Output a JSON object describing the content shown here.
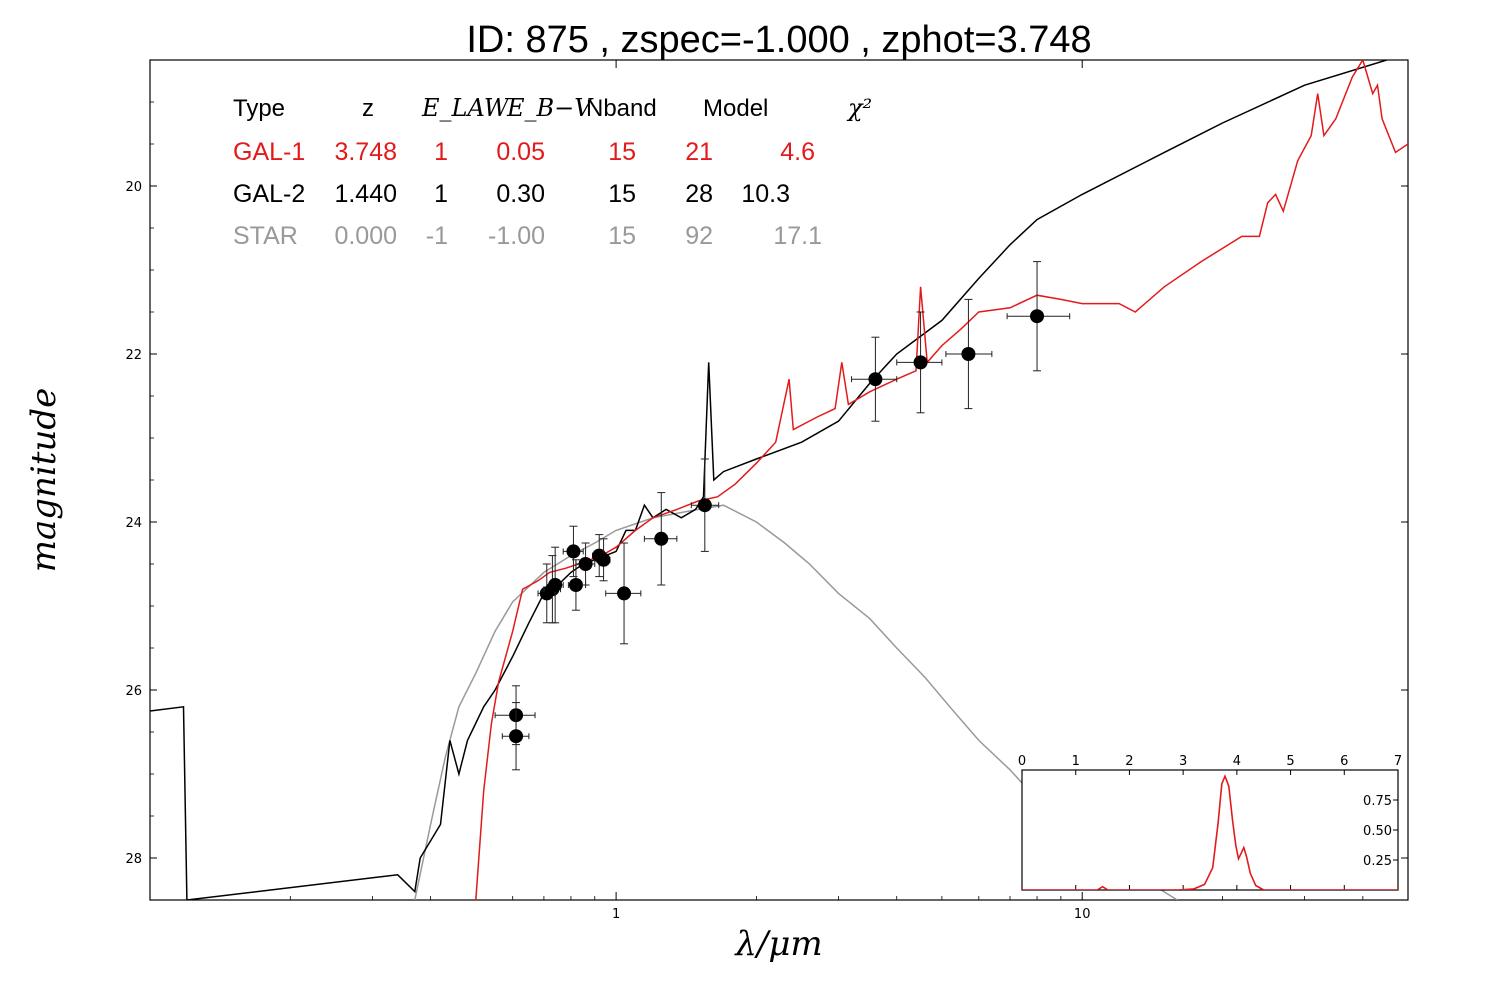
{
  "title": "ID:  875   , zspec=-1.000 , zphot=3.748",
  "colors": {
    "gal1": "#e31a1c",
    "gal2": "#000000",
    "star": "#999999",
    "points": "#000000"
  },
  "chart_data": {
    "type": "line",
    "xlabel": "λ/μm",
    "ylabel": "magnitude",
    "xscale": "log",
    "xlim": [
      0.1,
      50
    ],
    "ylim": [
      28.5,
      18.5
    ],
    "y_inverted": true,
    "x_ticks": [
      {
        "value": 1,
        "label": "1"
      },
      {
        "value": 10,
        "label": "10"
      }
    ],
    "y_ticks": [
      {
        "value": 20,
        "label": "20"
      },
      {
        "value": 22,
        "label": "22"
      },
      {
        "value": 24,
        "label": "24"
      },
      {
        "value": 26,
        "label": "26"
      },
      {
        "value": 28,
        "label": "28"
      }
    ],
    "legend_table": {
      "headers": [
        "Type",
        "z",
        "E_LAW",
        "E_B−V",
        "Nband",
        "Model",
        "χ²"
      ],
      "rows": [
        {
          "type": "GAL-1",
          "z": "3.748",
          "elaw": "1",
          "ebv": "0.05",
          "nband": "15",
          "model": "21",
          "chi2": "4.6",
          "color": "#e31a1c"
        },
        {
          "type": "GAL-2",
          "z": "1.440",
          "elaw": "1",
          "ebv": "0.30",
          "nband": "15",
          "model": "28",
          "chi2": "10.3",
          "color": "#000000"
        },
        {
          "type": "STAR",
          "z": "0.000",
          "elaw": "-1",
          "ebv": "-1.00",
          "nband": "15",
          "model": "92",
          "chi2": "17.1",
          "color": "#999999"
        }
      ]
    },
    "series": [
      {
        "name": "GAL-1",
        "color": "#e31a1c",
        "points": [
          [
            0.5,
            28.5
          ],
          [
            0.52,
            27.2
          ],
          [
            0.54,
            26.4
          ],
          [
            0.56,
            25.9
          ],
          [
            0.6,
            25.3
          ],
          [
            0.63,
            24.8
          ],
          [
            0.68,
            24.7
          ],
          [
            0.72,
            24.6
          ],
          [
            0.78,
            24.55
          ],
          [
            0.83,
            24.5
          ],
          [
            0.88,
            24.45
          ],
          [
            0.93,
            24.4
          ],
          [
            1.0,
            24.3
          ],
          [
            1.1,
            24.1
          ],
          [
            1.2,
            23.95
          ],
          [
            1.35,
            23.85
          ],
          [
            1.5,
            23.75
          ],
          [
            1.65,
            23.7
          ],
          [
            1.8,
            23.55
          ],
          [
            2.0,
            23.3
          ],
          [
            2.2,
            23.05
          ],
          [
            2.35,
            22.3
          ],
          [
            2.4,
            22.9
          ],
          [
            2.7,
            22.75
          ],
          [
            2.95,
            22.65
          ],
          [
            3.05,
            22.1
          ],
          [
            3.15,
            22.6
          ],
          [
            3.5,
            22.45
          ],
          [
            4.0,
            22.3
          ],
          [
            4.4,
            22.2
          ],
          [
            4.5,
            21.2
          ],
          [
            4.65,
            22.1
          ],
          [
            5.0,
            21.9
          ],
          [
            5.5,
            21.7
          ],
          [
            6.0,
            21.5
          ],
          [
            7.0,
            21.45
          ],
          [
            8.0,
            21.3
          ],
          [
            9.0,
            21.35
          ],
          [
            10.0,
            21.4
          ],
          [
            12.0,
            21.4
          ],
          [
            13.0,
            21.5
          ],
          [
            15.0,
            21.2
          ],
          [
            18.0,
            20.9
          ],
          [
            22.0,
            20.6
          ],
          [
            24.0,
            20.6
          ],
          [
            25.0,
            20.2
          ],
          [
            26.0,
            20.1
          ],
          [
            27.0,
            20.3
          ],
          [
            29.0,
            19.7
          ],
          [
            31.0,
            19.4
          ],
          [
            32.0,
            18.9
          ],
          [
            33.0,
            19.4
          ],
          [
            35.0,
            19.2
          ],
          [
            38.0,
            18.7
          ],
          [
            40.0,
            18.5
          ],
          [
            42.0,
            18.9
          ],
          [
            43.0,
            18.8
          ],
          [
            44.0,
            19.2
          ],
          [
            47.0,
            19.6
          ],
          [
            50.0,
            19.5
          ]
        ]
      },
      {
        "name": "GAL-2",
        "color": "#000000",
        "points": [
          [
            0.1,
            26.25
          ],
          [
            0.118,
            26.2
          ],
          [
            0.12,
            28.5
          ],
          [
            0.34,
            28.2
          ],
          [
            0.37,
            28.4
          ],
          [
            0.38,
            28.0
          ],
          [
            0.42,
            27.6
          ],
          [
            0.44,
            26.6
          ],
          [
            0.46,
            27.0
          ],
          [
            0.48,
            26.6
          ],
          [
            0.52,
            26.2
          ],
          [
            0.55,
            26.0
          ],
          [
            0.6,
            25.6
          ],
          [
            0.65,
            25.2
          ],
          [
            0.7,
            24.85
          ],
          [
            0.75,
            24.75
          ],
          [
            0.8,
            24.6
          ],
          [
            0.85,
            24.5
          ],
          [
            0.9,
            24.45
          ],
          [
            0.95,
            24.4
          ],
          [
            1.0,
            24.35
          ],
          [
            1.05,
            24.1
          ],
          [
            1.1,
            24.1
          ],
          [
            1.15,
            23.8
          ],
          [
            1.2,
            23.95
          ],
          [
            1.28,
            23.85
          ],
          [
            1.38,
            23.95
          ],
          [
            1.48,
            23.85
          ],
          [
            1.54,
            23.7
          ],
          [
            1.58,
            22.1
          ],
          [
            1.62,
            23.5
          ],
          [
            1.7,
            23.4
          ],
          [
            2.0,
            23.25
          ],
          [
            2.5,
            23.05
          ],
          [
            3.0,
            22.8
          ],
          [
            3.5,
            22.35
          ],
          [
            4.0,
            22.0
          ],
          [
            5.0,
            21.6
          ],
          [
            6.0,
            21.1
          ],
          [
            7.0,
            20.7
          ],
          [
            8.0,
            20.4
          ],
          [
            10.0,
            20.1
          ],
          [
            15.0,
            19.6
          ],
          [
            20.0,
            19.25
          ],
          [
            30.0,
            18.8
          ],
          [
            45.0,
            18.5
          ]
        ]
      },
      {
        "name": "STAR",
        "color": "#999999",
        "points": [
          [
            0.37,
            28.5
          ],
          [
            0.4,
            27.6
          ],
          [
            0.43,
            26.8
          ],
          [
            0.46,
            26.2
          ],
          [
            0.5,
            25.8
          ],
          [
            0.55,
            25.3
          ],
          [
            0.6,
            24.95
          ],
          [
            0.7,
            24.6
          ],
          [
            0.8,
            24.4
          ],
          [
            0.9,
            24.25
          ],
          [
            1.0,
            24.1
          ],
          [
            1.2,
            23.95
          ],
          [
            1.5,
            23.85
          ],
          [
            1.7,
            23.8
          ],
          [
            2.0,
            24.0
          ],
          [
            2.3,
            24.25
          ],
          [
            2.6,
            24.5
          ],
          [
            3.0,
            24.85
          ],
          [
            3.5,
            25.15
          ],
          [
            4.0,
            25.5
          ],
          [
            4.6,
            25.85
          ],
          [
            5.2,
            26.2
          ],
          [
            6.0,
            26.6
          ],
          [
            7.0,
            26.95
          ],
          [
            8.0,
            27.3
          ],
          [
            10.0,
            27.8
          ],
          [
            14.0,
            28.3
          ],
          [
            16.0,
            28.5
          ]
        ]
      }
    ],
    "photometry": {
      "name": "observed",
      "points": [
        {
          "x": 0.61,
          "y": 26.3,
          "yerr": 0.35,
          "xlo": 0.55,
          "xhi": 0.67
        },
        {
          "x": 0.61,
          "y": 26.55,
          "yerr": 0.4,
          "xlo": 0.57,
          "xhi": 0.65
        },
        {
          "x": 0.71,
          "y": 24.85,
          "yerr": 0.35,
          "xlo": 0.68,
          "xhi": 0.74
        },
        {
          "x": 0.73,
          "y": 24.8,
          "yerr": 0.4,
          "xlo": 0.7,
          "xhi": 0.76
        },
        {
          "x": 0.74,
          "y": 24.75,
          "yerr": 0.45,
          "xlo": 0.72,
          "xhi": 0.77
        },
        {
          "x": 0.81,
          "y": 24.35,
          "yerr": 0.3,
          "xlo": 0.77,
          "xhi": 0.85
        },
        {
          "x": 0.82,
          "y": 24.75,
          "yerr": 0.3,
          "xlo": 0.79,
          "xhi": 0.86
        },
        {
          "x": 0.86,
          "y": 24.5,
          "yerr": 0.25,
          "xlo": 0.82,
          "xhi": 0.9
        },
        {
          "x": 0.92,
          "y": 24.4,
          "yerr": 0.25,
          "xlo": 0.89,
          "xhi": 0.95
        },
        {
          "x": 0.94,
          "y": 24.45,
          "yerr": 0.25,
          "xlo": 0.91,
          "xhi": 0.97
        },
        {
          "x": 1.04,
          "y": 24.85,
          "yerr": 0.6,
          "xlo": 0.95,
          "xhi": 1.13
        },
        {
          "x": 1.25,
          "y": 24.2,
          "yerr": 0.55,
          "xlo": 1.15,
          "xhi": 1.35
        },
        {
          "x": 1.55,
          "y": 23.8,
          "yerr": 0.55,
          "xlo": 1.45,
          "xhi": 1.66
        },
        {
          "x": 3.6,
          "y": 22.3,
          "yerr": 0.5,
          "xlo": 3.2,
          "xhi": 4.0
        },
        {
          "x": 4.5,
          "y": 22.1,
          "yerr": 0.6,
          "xlo": 4.0,
          "xhi": 5.0
        },
        {
          "x": 5.7,
          "y": 22.0,
          "yerr": 0.65,
          "xlo": 5.1,
          "xhi": 6.4
        },
        {
          "x": 8.0,
          "y": 21.55,
          "yerr": 0.65,
          "xlo": 6.9,
          "xhi": 9.4
        }
      ]
    },
    "inset": {
      "type": "line",
      "description_series": "P(z)",
      "xlim": [
        0,
        7
      ],
      "ylim": [
        0,
        1.0
      ],
      "x_ticks": [
        0,
        1,
        2,
        3,
        4,
        5,
        6,
        7
      ],
      "y_ticks": [
        {
          "value": 0.25,
          "label": "0.25"
        },
        {
          "value": 0.5,
          "label": "0.50"
        },
        {
          "value": 0.75,
          "label": "0.75"
        }
      ],
      "color": "#e31a1c",
      "points": [
        [
          0,
          0
        ],
        [
          1.4,
          0
        ],
        [
          1.5,
          0.03
        ],
        [
          1.6,
          0
        ],
        [
          2.9,
          0
        ],
        [
          3.2,
          0.01
        ],
        [
          3.4,
          0.05
        ],
        [
          3.55,
          0.2
        ],
        [
          3.65,
          0.6
        ],
        [
          3.72,
          0.95
        ],
        [
          3.78,
          1.02
        ],
        [
          3.85,
          0.93
        ],
        [
          3.92,
          0.62
        ],
        [
          3.98,
          0.4
        ],
        [
          4.03,
          0.28
        ],
        [
          4.08,
          0.33
        ],
        [
          4.13,
          0.38
        ],
        [
          4.18,
          0.3
        ],
        [
          4.25,
          0.15
        ],
        [
          4.35,
          0.04
        ],
        [
          4.5,
          0
        ],
        [
          7,
          0
        ]
      ]
    }
  }
}
